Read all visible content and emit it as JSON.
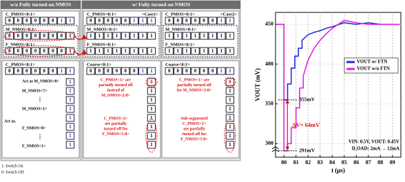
{
  "diagram": {
    "left_header": "w/o Fully turned-on NMOS",
    "right_header": "w/ Fully turned-on NMOS",
    "columns": [
      {
        "rows": [
          {
            "label": "C_PMOS<8:1>",
            "bits": [
              0,
              0,
              0,
              0,
              0,
              0,
              1,
              1
            ]
          },
          {
            "label": "M_NMOS<8:1>",
            "bits": [
              0,
              0,
              0,
              0,
              0,
              0,
              0,
              1
            ]
          },
          {
            "label": "F_NMOS<8:1>",
            "bits": [
              0,
              0,
              0,
              0,
              0,
              0,
              0,
              1
            ]
          }
        ]
      },
      {
        "case": "<Case1>",
        "rows": [
          {
            "label": "C_PMOS<8:1>",
            "bits": [
              0,
              0,
              0,
              0,
              0,
              1,
              1,
              1
            ]
          },
          {
            "label": "M_NMOS<8:1>",
            "bits": [
              1,
              1,
              1,
              1,
              1,
              1,
              1,
              1
            ]
          },
          {
            "label": "F_NMOS<8:1>",
            "bits": [
              1,
              1,
              1,
              1,
              1,
              1,
              1,
              1
            ]
          }
        ]
      },
      {
        "case": "<Case2>",
        "rows": [
          {
            "label": "C_PMOS<8:1>",
            "bits": [
              0,
              0,
              0,
              0,
              0,
              0,
              1,
              1
            ]
          },
          {
            "label": "M_NMOS<8:1>",
            "bits": [
              1,
              1,
              1,
              1,
              1,
              1,
              1,
              1
            ]
          },
          {
            "label": "F_NMOS<8:1>",
            "bits": [
              1,
              1,
              1,
              1,
              1,
              1,
              1,
              1
            ]
          }
        ]
      }
    ],
    "bottom": [
      {
        "label": "C_PMOS<8:1>",
        "bits": [
          0,
          0,
          0,
          0,
          0,
          0,
          1,
          1
        ],
        "column": [
          1,
          1,
          1,
          1,
          1,
          1,
          1,
          1
        ],
        "notes": [
          [
            "Act as M_NMOS<8>"
          ],
          [
            "M_NMOS<7>"
          ],
          [
            "M_NMOS<1>"
          ],
          [
            "Act as."
          ],
          [
            "F_NMOS<8>"
          ],
          [
            "F_NMOS<1>"
          ]
        ]
      },
      {
        "label": "Coarse<8:1>",
        "bits": [
          0,
          0,
          0,
          0,
          0,
          0,
          1,
          1
        ],
        "column": [
          0,
          1,
          1,
          1,
          1,
          1,
          1,
          1
        ],
        "notes": [
          [
            "C_PMOS<1> are",
            "partially turned off",
            "instead of",
            "M_NMOS<2:8>"
          ],
          [
            "C_PMOS<2>",
            "are partially",
            "turned off for",
            "F_NMOS<5:8>"
          ]
        ]
      },
      {
        "label": "Coarse<8:1>",
        "bits": [
          0,
          0,
          0,
          0,
          0,
          0,
          1,
          1
        ],
        "column": [
          0,
          1,
          1,
          1,
          1,
          1,
          1,
          1
        ],
        "notes": [
          [
            "C_PMOS<1> are",
            "partially turned off",
            "for M_NMOS<2:8>"
          ],
          [
            "Sub-segmented",
            "C_PMOS<1>",
            "are partially",
            "turned off for",
            "F_NMOS<5:8>"
          ]
        ]
      }
    ],
    "legend": [
      "1: Switch On",
      "0: Switch Off"
    ]
  },
  "chart_data": {
    "type": "line",
    "xlabel": "t (μs)",
    "ylabel": "VOUT (mV)",
    "xlim": [
      79.3,
      89.7
    ],
    "ylim": [
      283,
      465
    ],
    "xticks": [
      80,
      81,
      82,
      83,
      84,
      85,
      86,
      87,
      88,
      89
    ],
    "yticks": [
      300,
      350,
      400,
      450
    ],
    "grid": true,
    "legend": "right",
    "series": [
      {
        "name": "VOUT w/ FTN",
        "color": "#1f2fd6",
        "x": [
          79.4,
          80,
          80,
          80.3,
          80.3,
          80.6,
          80.6,
          80.9,
          80.9,
          81.2,
          81.2,
          81.5,
          81.5,
          82,
          82.5,
          83,
          83.5,
          84,
          85,
          86,
          87,
          88,
          89,
          89.6
        ],
        "values": [
          450,
          450,
          355,
          355,
          375,
          375,
          395,
          395,
          410,
          410,
          420,
          420,
          430,
          437,
          440,
          442,
          445,
          447,
          452,
          450,
          452,
          450,
          450,
          450
        ]
      },
      {
        "name": "VOUT w/o FTN",
        "color": "#e020e0",
        "x": [
          79.4,
          80,
          80,
          80.3,
          80.3,
          80.6,
          80.6,
          81,
          81,
          81.3,
          81.3,
          81.6,
          81.6,
          82,
          82.5,
          83,
          83.5,
          84,
          84.5,
          85,
          86,
          87,
          88,
          89,
          89.6
        ],
        "values": [
          450,
          450,
          291,
          291,
          300,
          300,
          320,
          320,
          345,
          345,
          370,
          370,
          385,
          405,
          420,
          430,
          438,
          445,
          450,
          455,
          452,
          450,
          450,
          450,
          450
        ]
      }
    ],
    "annotations": [
      "355mV",
      "291mV",
      "ΔV= 64mV",
      "VIN: 0.5V, VOUT: 0.45V",
      "ILOAD: 2mA → 12mA"
    ]
  }
}
